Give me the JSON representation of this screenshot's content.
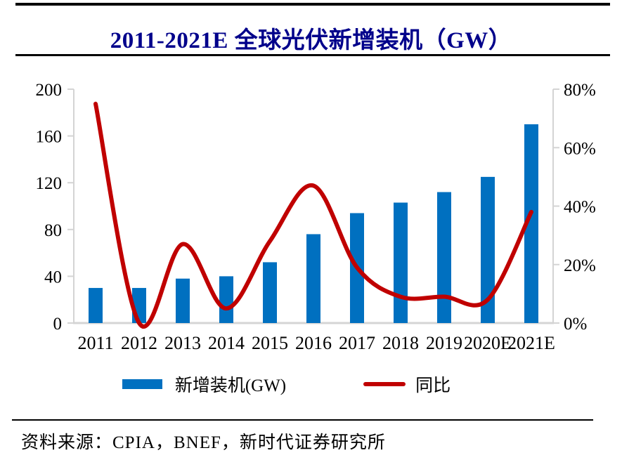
{
  "header": {
    "title": "2011-2021E 全球光伏新增装机（GW）"
  },
  "legend": [
    {
      "label": "新增装机(GW)",
      "swatch": "bar",
      "color": "#0070C0"
    },
    {
      "label": "同比",
      "swatch": "line",
      "color": "#C00000"
    }
  ],
  "footer": {
    "source": "资料来源：CPIA，BNEF，新时代证券研究所"
  },
  "colors": {
    "bar": "#0070C0",
    "line": "#C00000",
    "title": "#00008B",
    "axis": "#D4D4D4",
    "label": "#000000"
  },
  "chart_data": {
    "type": "bar",
    "combo": "bar+line dual-axis",
    "title": "2011-2021E 全球光伏新增装机（GW）",
    "categories": [
      "2011",
      "2012",
      "2013",
      "2014",
      "2015",
      "2016",
      "2017",
      "2018",
      "2019",
      "2020E",
      "2021E"
    ],
    "series": [
      {
        "name": "新增装机(GW)",
        "type": "bar",
        "axis": "left",
        "unit": "GW",
        "color": "#0070C0",
        "values": [
          30,
          30,
          38,
          40,
          52,
          76,
          94,
          103,
          112,
          125,
          170
        ]
      },
      {
        "name": "同比",
        "type": "line",
        "axis": "right",
        "unit": "%",
        "color": "#C00000",
        "values": [
          75,
          0,
          27,
          5,
          28,
          47,
          19,
          9,
          9,
          8,
          38
        ]
      }
    ],
    "left_axis": {
      "min": 0,
      "max": 200,
      "tick_step": 40,
      "tick_labels": [
        "0",
        "40",
        "80",
        "120",
        "160",
        "200"
      ]
    },
    "right_axis": {
      "min": 0,
      "max": 80,
      "tick_step": 20,
      "tick_labels": [
        "0%",
        "20%",
        "40%",
        "60%",
        "80%"
      ]
    },
    "grid": false,
    "legend_position": "bottom",
    "line_smoothing": true
  }
}
